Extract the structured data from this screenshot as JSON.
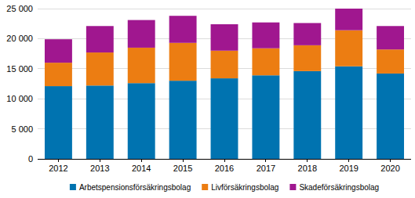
{
  "chart_data": {
    "type": "bar",
    "stacked": true,
    "grid": true,
    "legend": "bottom",
    "categories": [
      "2012",
      "2013",
      "2014",
      "2015",
      "2016",
      "2017",
      "2018",
      "2019",
      "2020"
    ],
    "series": [
      {
        "name": "Arbetspensionsförsäkringsbolag",
        "color": "#0073b0",
        "values": [
          12100,
          12200,
          12600,
          13000,
          13400,
          13900,
          14600,
          15400,
          14200
        ]
      },
      {
        "name": "Livförsäkringsbolag",
        "color": "#ec7d12",
        "values": [
          3900,
          5500,
          5900,
          6300,
          4600,
          4500,
          4300,
          6000,
          4000
        ]
      },
      {
        "name": "Skadeförsäkringsbolag",
        "color": "#a0178f",
        "values": [
          3900,
          4400,
          4600,
          4500,
          4400,
          4300,
          3700,
          3600,
          3900
        ]
      }
    ],
    "ylim": [
      0,
      25000
    ],
    "yticks": [
      0,
      {
        "value": 5000,
        "label": "5 000"
      },
      {
        "value": 10000,
        "label": "10 000"
      },
      {
        "value": 15000,
        "label": "15 000"
      },
      {
        "value": 20000,
        "label": "20 000"
      },
      {
        "value": 25000,
        "label": "25 000"
      }
    ]
  }
}
